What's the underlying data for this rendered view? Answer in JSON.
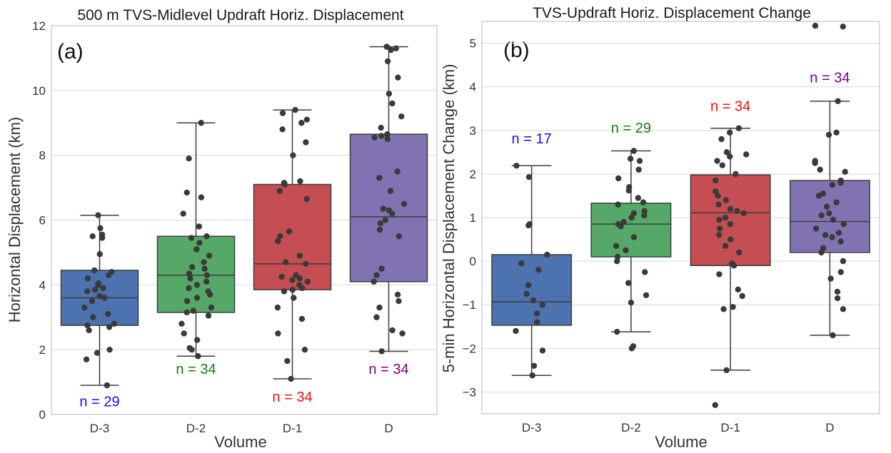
{
  "chart_data": [
    {
      "type": "box",
      "panel_label": "(a)",
      "title": "500 m TVS-Midlevel Updraft Horiz. Displacement",
      "xlabel": "Volume",
      "ylabel": "Horizontal Displacement (km)",
      "ylim": [
        0,
        12
      ],
      "yticks": [
        0,
        2,
        4,
        6,
        8,
        10,
        12
      ],
      "grid": true,
      "categories": [
        "D-3",
        "D-2",
        "D-1",
        "D"
      ],
      "category_label_colors": [
        "#e8151d",
        "#e8151d",
        "#e8151d",
        "#333333"
      ],
      "box_colors": [
        "#4c72b0",
        "#55a868",
        "#c44e52",
        "#8172b2"
      ],
      "boxes": [
        {
          "whislo": 0.9,
          "q1": 2.75,
          "med": 3.6,
          "q3": 4.45,
          "whishi": 6.15
        },
        {
          "whislo": 1.8,
          "q1": 3.15,
          "med": 4.3,
          "q3": 5.5,
          "whishi": 9.0
        },
        {
          "whislo": 1.1,
          "q1": 3.85,
          "med": 4.65,
          "q3": 7.1,
          "whishi": 9.4
        },
        {
          "whislo": 1.95,
          "q1": 4.1,
          "med": 6.1,
          "q3": 8.65,
          "whishi": 11.35
        }
      ],
      "points": [
        [
          0.9,
          1.7,
          1.9,
          2.0,
          2.6,
          2.7,
          2.75,
          2.8,
          3.0,
          3.1,
          3.3,
          3.5,
          3.6,
          3.65,
          3.8,
          3.85,
          3.9,
          4.0,
          4.05,
          4.2,
          4.3,
          4.4,
          4.45,
          4.95,
          5.45,
          5.5,
          5.55,
          5.75,
          6.15
        ],
        [
          1.8,
          2.0,
          2.05,
          2.3,
          2.5,
          2.8,
          3.05,
          3.15,
          3.2,
          3.3,
          3.5,
          3.6,
          3.7,
          3.8,
          3.9,
          4.0,
          4.1,
          4.2,
          4.3,
          4.35,
          4.5,
          4.55,
          4.7,
          4.9,
          5.1,
          5.3,
          5.45,
          5.5,
          5.8,
          6.2,
          6.7,
          6.85,
          7.9,
          9.0
        ],
        [
          1.1,
          1.65,
          2.0,
          2.5,
          2.95,
          3.3,
          3.6,
          3.8,
          3.85,
          3.9,
          4.0,
          4.1,
          4.15,
          4.2,
          4.25,
          4.3,
          4.65,
          4.7,
          4.9,
          5.35,
          5.5,
          5.65,
          6.65,
          6.9,
          7.1,
          7.15,
          7.2,
          8.0,
          8.4,
          8.8,
          9.0,
          9.1,
          9.3,
          9.4
        ],
        [
          1.95,
          2.5,
          2.6,
          3.0,
          3.3,
          3.5,
          3.7,
          4.1,
          4.3,
          4.5,
          5.5,
          5.7,
          6.0,
          6.2,
          6.3,
          6.35,
          6.5,
          6.9,
          7.3,
          7.5,
          8.5,
          8.55,
          8.6,
          8.65,
          8.85,
          9.2,
          9.6,
          9.9,
          10.4,
          10.9,
          11.25,
          11.3,
          11.35,
          5.9
        ]
      ],
      "annotations": [
        {
          "text": "n = 29",
          "category": "D-3",
          "y": 0.25,
          "color": "#1010ee"
        },
        {
          "text": "n = 34",
          "category": "D-2",
          "y": 1.25,
          "color": "#108010"
        },
        {
          "text": "n = 34",
          "category": "D-1",
          "y": 0.4,
          "color": "#ee1010"
        },
        {
          "text": "n = 34",
          "category": "D",
          "y": 1.25,
          "color": "#800080"
        }
      ]
    },
    {
      "type": "box",
      "panel_label": "(b)",
      "title": "TVS-Updraft Horiz. Displacement Change",
      "xlabel": "Volume",
      "ylabel": "5-min Horizontal Displacement Change (km)",
      "ylim": [
        -3.5,
        5.5
      ],
      "yticks": [
        -3,
        -2,
        -1,
        0,
        1,
        2,
        3,
        4,
        5
      ],
      "grid": true,
      "categories": [
        "D-3",
        "D-2",
        "D-1",
        "D"
      ],
      "category_label_colors": [
        "#e8151d",
        "#333333",
        "#333333",
        "#333333"
      ],
      "box_colors": [
        "#4c72b0",
        "#55a868",
        "#c44e52",
        "#8172b2"
      ],
      "boxes": [
        {
          "whislo": -2.62,
          "q1": -1.47,
          "med": -0.93,
          "q3": 0.15,
          "whishi": 2.19
        },
        {
          "whislo": -1.62,
          "q1": 0.1,
          "med": 0.85,
          "q3": 1.33,
          "whishi": 2.53
        },
        {
          "whislo": -2.5,
          "q1": -0.1,
          "med": 1.11,
          "q3": 1.98,
          "whishi": 3.05
        },
        {
          "whislo": -1.7,
          "q1": 0.2,
          "med": 0.91,
          "q3": 1.85,
          "whishi": 3.67
        }
      ],
      "points": [
        [
          -2.62,
          -2.4,
          -2.05,
          -1.6,
          -1.4,
          -1.2,
          -1.0,
          -0.9,
          -0.55,
          -0.2,
          0.15,
          0.82,
          0.85,
          1.93,
          2.19,
          -0.75,
          -0.05
        ],
        [
          -2.0,
          -1.95,
          -1.62,
          -0.95,
          -0.78,
          -0.5,
          -0.25,
          0.1,
          0.25,
          0.35,
          0.55,
          0.8,
          0.85,
          0.9,
          1.0,
          1.05,
          1.1,
          1.15,
          1.3,
          1.35,
          1.45,
          1.62,
          1.7,
          1.9,
          2.1,
          2.3,
          2.35,
          2.53,
          0.0
        ],
        [
          -3.3,
          -2.5,
          -1.1,
          -1.05,
          -0.8,
          -0.65,
          -0.3,
          -0.1,
          0.2,
          0.35,
          0.5,
          0.6,
          0.75,
          0.85,
          0.95,
          1.0,
          1.1,
          1.15,
          1.2,
          1.3,
          1.4,
          1.5,
          1.6,
          1.85,
          2.0,
          2.2,
          2.3,
          2.4,
          2.45,
          2.5,
          2.8,
          2.95,
          3.05,
          -0.05
        ],
        [
          -1.7,
          -1.1,
          -0.85,
          -0.7,
          -0.4,
          -0.25,
          0.0,
          0.2,
          0.3,
          0.45,
          0.6,
          0.65,
          0.75,
          0.85,
          0.95,
          1.05,
          1.1,
          1.25,
          1.5,
          1.55,
          1.75,
          1.8,
          1.85,
          2.05,
          2.1,
          2.25,
          2.3,
          2.9,
          2.95,
          3.67,
          5.38,
          5.4,
          1.35,
          0.55
        ]
      ],
      "annotations": [
        {
          "text": "n = 17",
          "category": "D-3",
          "y": 2.7,
          "color": "#1010ee"
        },
        {
          "text": "n = 29",
          "category": "D-2",
          "y": 2.95,
          "color": "#108010"
        },
        {
          "text": "n = 34",
          "category": "D-1",
          "y": 3.45,
          "color": "#ee1010"
        },
        {
          "text": "n = 34",
          "category": "D",
          "y": 4.1,
          "color": "#800080"
        }
      ]
    }
  ]
}
